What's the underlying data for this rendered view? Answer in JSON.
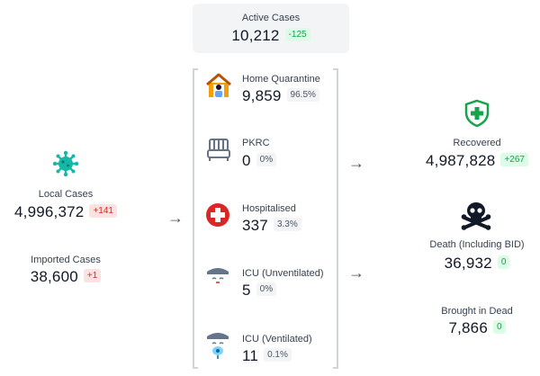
{
  "active": {
    "label": "Active Cases",
    "value": "10,212",
    "delta": "-125"
  },
  "local": {
    "label": "Local Cases",
    "value": "4,996,372",
    "delta": "+141"
  },
  "imported": {
    "label": "Imported Cases",
    "value": "38,600",
    "delta": "+1"
  },
  "categories": [
    {
      "label": "Home Quarantine",
      "value": "9,859",
      "pct": "96.5%",
      "icon": "home-quarantine-icon"
    },
    {
      "label": "PKRC",
      "value": "0",
      "pct": "0%",
      "icon": "bed-icon"
    },
    {
      "label": "Hospitalised",
      "value": "337",
      "pct": "3.3%",
      "icon": "hospital-cross-icon"
    },
    {
      "label": "ICU (Unventilated)",
      "value": "5",
      "pct": "0%",
      "icon": "icu-patient-icon"
    },
    {
      "label": "ICU (Ventilated)",
      "value": "11",
      "pct": "0.1%",
      "icon": "ventilated-patient-icon"
    }
  ],
  "recovered": {
    "label": "Recovered",
    "value": "4,987,828",
    "delta": "+267",
    "icon": "shield-plus-icon"
  },
  "death": {
    "label": "Death (Including BID)",
    "value": "36,932",
    "delta": "0",
    "icon": "skull-crossbones-icon"
  },
  "bid": {
    "label": "Brought in Dead",
    "value": "7,866",
    "delta": "0"
  },
  "arrow_glyph": "→",
  "colors": {
    "green": "#16a34a",
    "red": "#dc2626",
    "virus": "#14b8a6",
    "dark": "#111827",
    "gold": "#f59e0b"
  }
}
